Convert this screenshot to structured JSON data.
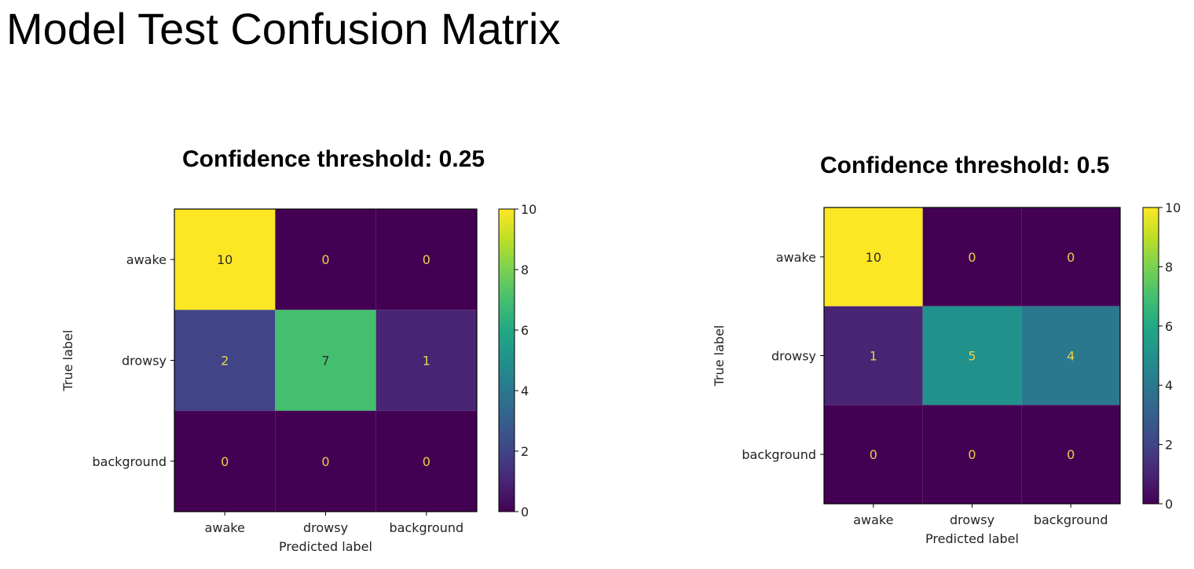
{
  "page": {
    "title": "Model Test Confusion Matrix"
  },
  "chart_data": [
    {
      "type": "heatmap",
      "title": "Confidence threshold: 0.25",
      "xlabel": "Predicted label",
      "ylabel": "True label",
      "x_categories": [
        "awake",
        "drowsy",
        "background"
      ],
      "y_categories": [
        "awake",
        "drowsy",
        "background"
      ],
      "values": [
        [
          10,
          0,
          0
        ],
        [
          2,
          7,
          1
        ],
        [
          0,
          0,
          0
        ]
      ],
      "colorbar": {
        "range": [
          0,
          10
        ],
        "ticks": [
          "0",
          "2",
          "4",
          "6",
          "8",
          "10"
        ],
        "colormap": "viridis"
      }
    },
    {
      "type": "heatmap",
      "title": "Confidence threshold: 0.5",
      "xlabel": "Predicted label",
      "ylabel": "True label",
      "x_categories": [
        "awake",
        "drowsy",
        "background"
      ],
      "y_categories": [
        "awake",
        "drowsy",
        "background"
      ],
      "values": [
        [
          10,
          0,
          0
        ],
        [
          1,
          5,
          4
        ],
        [
          0,
          0,
          0
        ]
      ],
      "colorbar": {
        "range": [
          0,
          10
        ],
        "ticks": [
          "0",
          "2",
          "4",
          "6",
          "8",
          "10"
        ],
        "colormap": "viridis"
      }
    }
  ]
}
